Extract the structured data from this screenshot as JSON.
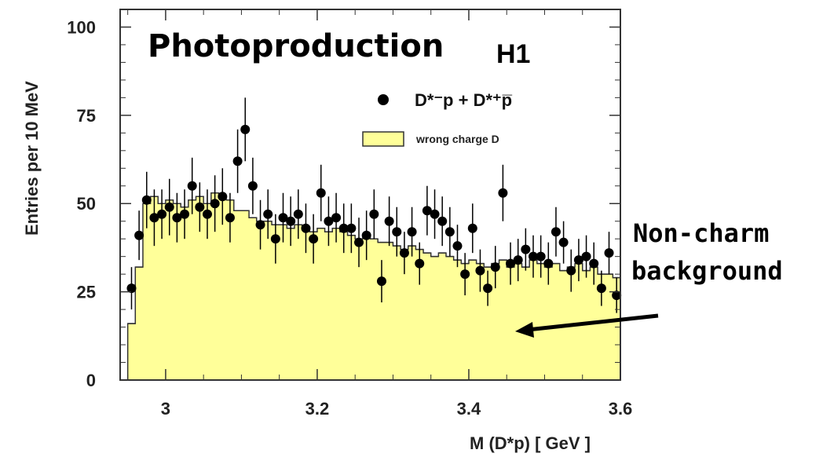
{
  "chart_data": {
    "type": "scatter",
    "title": "Photoproduction",
    "experiment": "H1",
    "xlabel": "M (D*p) [ GeV ]",
    "ylabel": "Entries per 10 MeV",
    "xlim": [
      2.94,
      3.6
    ],
    "ylim": [
      0,
      105
    ],
    "x_ticks": [
      3.0,
      3.2,
      3.4,
      3.6
    ],
    "x_tick_labels": [
      "3",
      "3.2",
      "3.4",
      "3.6"
    ],
    "y_ticks": [
      0,
      25,
      50,
      75,
      100
    ],
    "y_tick_labels": [
      "0",
      "25",
      "50",
      "75",
      "100"
    ],
    "legend": {
      "placement": "top-right",
      "data_label": "D*⁻p + D*⁺p̅",
      "hist_label": "wrong charge D"
    },
    "series": [
      {
        "name": "D*⁻p + D*⁺p̅",
        "kind": "points-with-errors",
        "color": "#000000",
        "x": [
          2.955,
          2.965,
          2.975,
          2.985,
          2.995,
          3.005,
          3.015,
          3.025,
          3.035,
          3.045,
          3.055,
          3.065,
          3.075,
          3.085,
          3.095,
          3.105,
          3.115,
          3.125,
          3.135,
          3.145,
          3.155,
          3.165,
          3.175,
          3.185,
          3.195,
          3.205,
          3.215,
          3.225,
          3.235,
          3.245,
          3.255,
          3.265,
          3.275,
          3.285,
          3.295,
          3.305,
          3.315,
          3.325,
          3.335,
          3.345,
          3.355,
          3.365,
          3.375,
          3.385,
          3.395,
          3.405,
          3.415,
          3.425,
          3.435,
          3.445,
          3.455,
          3.465,
          3.475,
          3.485,
          3.495,
          3.505,
          3.515,
          3.525,
          3.535,
          3.545,
          3.555,
          3.565,
          3.575,
          3.585,
          3.595
        ],
        "y": [
          26,
          41,
          51,
          46,
          47,
          49,
          46,
          47,
          55,
          49,
          47,
          50,
          52,
          46,
          62,
          71,
          55,
          44,
          47,
          40,
          46,
          45,
          47,
          43,
          40,
          53,
          45,
          46,
          43,
          43,
          39,
          41,
          47,
          28,
          45,
          42,
          36,
          42,
          33,
          48,
          47,
          45,
          42,
          38,
          30,
          43,
          31,
          26,
          32,
          53,
          33,
          34,
          37,
          35,
          35,
          33,
          42,
          39,
          31,
          34,
          35,
          33,
          26,
          36,
          24
        ],
        "err": [
          6,
          7,
          8,
          8,
          7,
          8,
          7,
          7,
          8,
          7,
          7,
          8,
          8,
          7,
          9,
          9,
          8,
          7,
          7,
          7,
          7,
          7,
          7,
          7,
          7,
          8,
          7,
          7,
          7,
          7,
          7,
          7,
          7,
          6,
          7,
          7,
          6,
          7,
          6,
          7,
          7,
          7,
          7,
          6,
          6,
          7,
          6,
          5,
          6,
          8,
          6,
          6,
          6,
          6,
          6,
          6,
          7,
          6,
          6,
          6,
          6,
          6,
          5,
          6,
          5
        ]
      },
      {
        "name": "wrong charge D",
        "kind": "histogram",
        "color": "#ffff99",
        "bin_width": 0.01,
        "x_start": 2.95,
        "values": [
          16,
          32,
          50,
          52,
          50,
          51,
          50,
          49,
          51,
          52,
          50,
          53,
          52,
          51,
          48,
          48,
          46,
          45,
          45,
          44,
          44,
          43,
          44,
          43,
          42,
          43,
          42,
          43,
          42,
          41,
          40,
          41,
          40,
          39,
          39,
          38,
          37,
          38,
          37,
          36,
          35,
          36,
          35,
          34,
          33,
          34,
          33,
          32,
          33,
          34,
          32,
          33,
          32,
          34,
          33,
          32,
          33,
          31,
          32,
          33,
          31,
          32,
          30,
          30,
          29
        ]
      }
    ]
  },
  "annotation": {
    "line1": "Non-charm",
    "line2": "background"
  }
}
